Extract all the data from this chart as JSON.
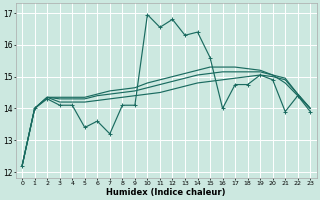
{
  "xlabel": "Humidex (Indice chaleur)",
  "xlim": [
    -0.5,
    23.5
  ],
  "ylim": [
    11.8,
    17.3
  ],
  "yticks": [
    12,
    13,
    14,
    15,
    16,
    17
  ],
  "xticks": [
    0,
    1,
    2,
    3,
    4,
    5,
    6,
    7,
    8,
    9,
    10,
    11,
    12,
    13,
    14,
    15,
    16,
    17,
    18,
    19,
    20,
    21,
    22,
    23
  ],
  "bg_color": "#cce8e0",
  "grid_color": "#ffffff",
  "line_color": "#1a6b60",
  "lines": [
    [
      12.2,
      14.0,
      14.3,
      14.1,
      14.1,
      13.4,
      13.6,
      13.2,
      14.1,
      14.1,
      16.95,
      16.55,
      16.8,
      16.3,
      16.4,
      15.6,
      14.0,
      14.75,
      14.75,
      15.05,
      14.9,
      13.9,
      14.4,
      13.9
    ],
    [
      12.2,
      14.0,
      14.35,
      14.2,
      14.2,
      14.2,
      14.25,
      14.3,
      14.35,
      14.4,
      14.45,
      14.5,
      14.6,
      14.7,
      14.8,
      14.85,
      14.9,
      14.95,
      15.0,
      15.05,
      15.0,
      14.9,
      14.45,
      14.0
    ],
    [
      12.2,
      14.0,
      14.35,
      14.3,
      14.3,
      14.3,
      14.4,
      14.45,
      14.5,
      14.55,
      14.65,
      14.75,
      14.85,
      14.95,
      15.05,
      15.1,
      15.15,
      15.15,
      15.15,
      15.15,
      15.05,
      14.95,
      14.45,
      14.0
    ],
    [
      12.2,
      14.0,
      14.35,
      14.35,
      14.35,
      14.35,
      14.45,
      14.55,
      14.6,
      14.65,
      14.8,
      14.9,
      15.0,
      15.1,
      15.2,
      15.3,
      15.3,
      15.3,
      15.25,
      15.2,
      15.05,
      14.8,
      14.4,
      14.0
    ]
  ]
}
